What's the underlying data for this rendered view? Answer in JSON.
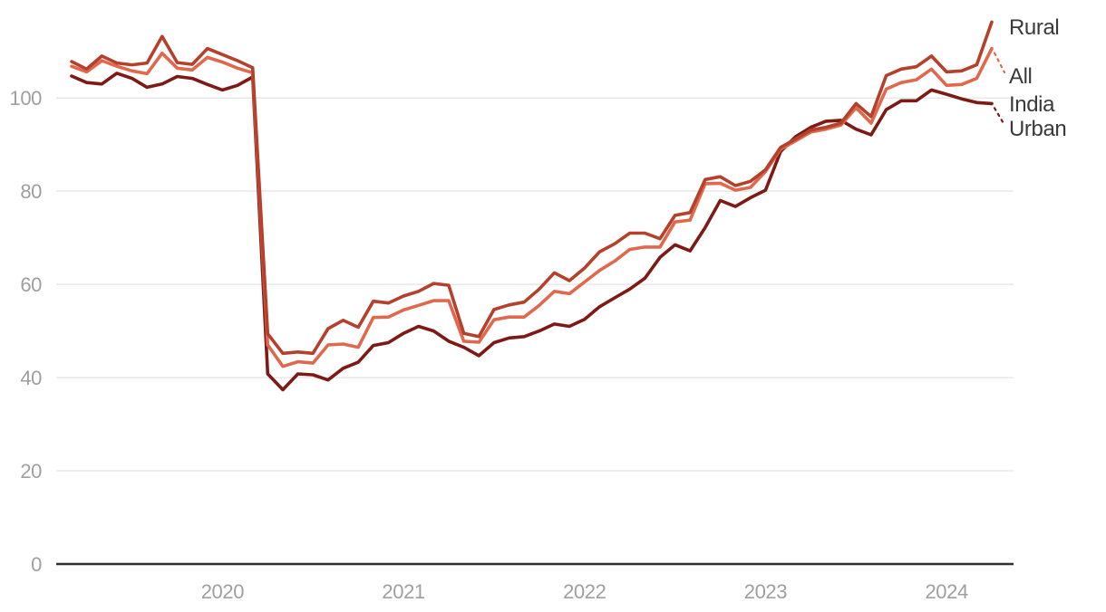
{
  "page": {
    "background": "#ffffff"
  },
  "chart_data": {
    "type": "line",
    "x_unit": "month",
    "x": [
      "2019-03",
      "2019-04",
      "2019-05",
      "2019-06",
      "2019-07",
      "2019-08",
      "2019-09",
      "2019-10",
      "2019-11",
      "2019-12",
      "2020-01",
      "2020-02",
      "2020-03",
      "2020-04",
      "2020-05",
      "2020-06",
      "2020-07",
      "2020-08",
      "2020-09",
      "2020-10",
      "2020-11",
      "2020-12",
      "2021-01",
      "2021-02",
      "2021-03",
      "2021-04",
      "2021-05",
      "2021-06",
      "2021-07",
      "2021-08",
      "2021-09",
      "2021-10",
      "2021-11",
      "2021-12",
      "2022-01",
      "2022-02",
      "2022-03",
      "2022-04",
      "2022-05",
      "2022-06",
      "2022-07",
      "2022-08",
      "2022-09",
      "2022-10",
      "2022-11",
      "2022-12",
      "2023-01",
      "2023-02",
      "2023-03",
      "2023-04",
      "2023-05",
      "2023-06",
      "2023-07",
      "2023-08",
      "2023-09",
      "2023-10",
      "2023-11",
      "2023-12",
      "2024-01",
      "2024-02",
      "2024-03",
      "2024-04"
    ],
    "series": [
      {
        "name": "Rural",
        "label_lines": [
          "Rural"
        ],
        "color": "#b5402c",
        "label_baselines": [
          38
        ],
        "leader": false,
        "values": [
          107.8,
          106.2,
          109.0,
          107.5,
          107.1,
          107.5,
          113.2,
          107.6,
          107.2,
          110.6,
          109.3,
          108.0,
          106.5,
          49.4,
          45.2,
          45.5,
          45.2,
          50.5,
          52.3,
          50.8,
          56.4,
          56.0,
          57.5,
          58.5,
          60.2,
          59.8,
          49.5,
          48.8,
          54.6,
          55.6,
          56.2,
          59.0,
          62.5,
          60.8,
          63.5,
          67.0,
          68.7,
          71.0,
          71.0,
          69.8,
          74.8,
          75.4,
          82.5,
          83.1,
          81.2,
          82.1,
          84.6,
          89.4,
          91.2,
          93.1,
          93.7,
          94.6,
          98.8,
          96.0,
          104.8,
          106.2,
          106.7,
          109.0,
          105.6,
          105.8,
          107.1,
          116.3
        ]
      },
      {
        "name": "All India",
        "label_lines": [
          "All",
          "India"
        ],
        "color": "#e0694d",
        "label_baselines": [
          92,
          123
        ],
        "leader": true,
        "values": [
          106.8,
          105.6,
          108.0,
          106.8,
          105.8,
          105.2,
          109.6,
          106.4,
          106.0,
          108.7,
          107.7,
          106.4,
          105.4,
          47.0,
          42.4,
          43.4,
          43.1,
          47.0,
          47.2,
          46.5,
          52.9,
          53.0,
          54.5,
          55.5,
          56.5,
          56.5,
          47.8,
          47.6,
          52.4,
          53.0,
          53.0,
          55.5,
          58.5,
          58.0,
          60.5,
          63.0,
          65.0,
          67.5,
          68.0,
          68.0,
          73.4,
          73.8,
          81.6,
          81.7,
          80.2,
          80.8,
          84.2,
          89.0,
          90.8,
          92.7,
          93.3,
          94.2,
          97.9,
          94.6,
          101.9,
          103.3,
          103.9,
          106.2,
          102.7,
          102.9,
          104.2,
          110.6
        ]
      },
      {
        "name": "Urban",
        "label_lines": [
          "Urban"
        ],
        "color": "#7d1a15",
        "label_baselines": [
          150
        ],
        "leader": true,
        "values": [
          104.7,
          103.3,
          103.0,
          105.3,
          104.2,
          102.3,
          103.0,
          104.6,
          104.2,
          102.9,
          101.7,
          102.7,
          104.5,
          40.8,
          37.4,
          40.8,
          40.6,
          39.5,
          42.0,
          43.3,
          46.9,
          47.5,
          49.5,
          51.0,
          50.0,
          47.8,
          46.5,
          44.7,
          47.5,
          48.5,
          48.8,
          50.0,
          51.5,
          51.0,
          52.5,
          55.2,
          57.1,
          59.0,
          61.3,
          65.8,
          68.5,
          67.2,
          72.2,
          78.0,
          76.7,
          78.6,
          80.2,
          88.5,
          91.7,
          93.7,
          95.0,
          95.2,
          93.3,
          92.1,
          97.5,
          99.4,
          99.4,
          101.7,
          100.8,
          99.8,
          99.0,
          98.8
        ]
      }
    ],
    "yticks": [
      0,
      20,
      40,
      60,
      80,
      100
    ],
    "xticks": [
      {
        "label": "2020",
        "month": "2020-01"
      },
      {
        "label": "2021",
        "month": "2021-01"
      },
      {
        "label": "2022",
        "month": "2022-01"
      },
      {
        "label": "2023",
        "month": "2023-01"
      },
      {
        "label": "2024",
        "month": "2024-01"
      }
    ],
    "ylim": [
      0,
      118
    ],
    "grid": "horizontal",
    "legend_position": "right-end-labels",
    "colors": {
      "grid": "#e8e8e8",
      "axis": "#2f2f2f",
      "tick_text": "#9f9f9f",
      "label_text": "#3a3a3a"
    },
    "layout": {
      "plot_left": 62,
      "plot_right": 1118,
      "x0": 79,
      "xstep": 16.64,
      "y_axis": 623,
      "yscale": 5.148,
      "ytick_label_x": 46,
      "xtick_label_y": 661,
      "series_label_x": 1113,
      "line_width": 3.6
    }
  }
}
